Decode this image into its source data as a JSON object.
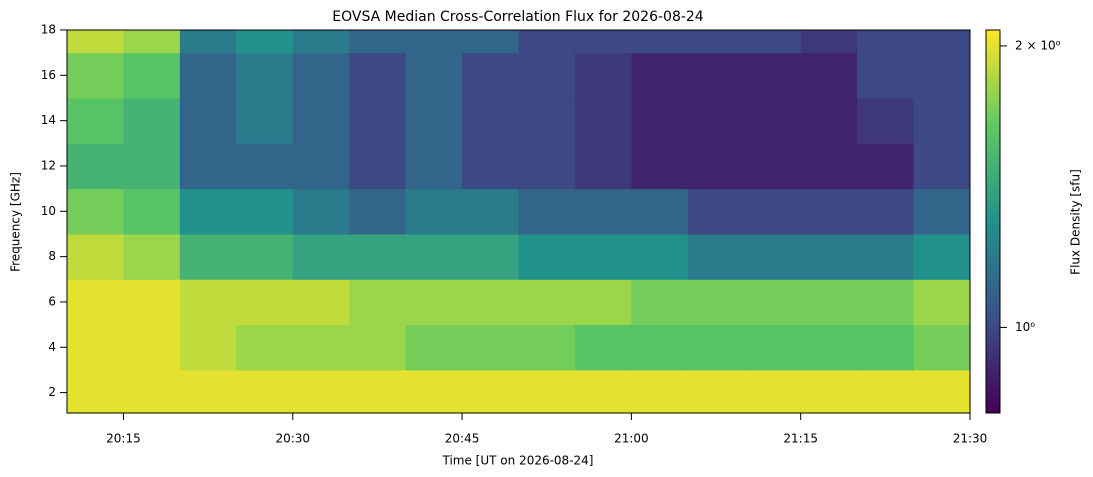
{
  "chart_data": {
    "type": "heatmap",
    "title": "EOVSA Median Cross-Correlation Flux for 2026-08-24",
    "xlabel": "Time [UT on 2026-08-24]",
    "ylabel": "Frequency [GHz]",
    "colorbar_label": "Flux Density [sfu]",
    "xlim": [
      "20:10",
      "21:30"
    ],
    "xticks": [
      "20:15",
      "20:30",
      "20:45",
      "21:00",
      "21:15",
      "21:30"
    ],
    "ylim": [
      1.1,
      18
    ],
    "yticks": [
      2,
      4,
      6,
      8,
      10,
      12,
      14,
      16,
      18
    ],
    "clim": [
      0.81,
      2.08
    ],
    "cticks": [
      {
        "value": 1,
        "label": "10⁰"
      },
      {
        "value": 2,
        "label": "2 × 10⁰"
      }
    ],
    "color_scale": "log",
    "colormap": [
      "#440154",
      "#3b528b",
      "#21918c",
      "#5ec962",
      "#fde725"
    ],
    "xbins": [
      "20:10",
      "20:15",
      "20:20",
      "20:25",
      "20:30",
      "20:35",
      "20:40",
      "20:45",
      "20:50",
      "20:55",
      "21:00",
      "21:05",
      "21:10",
      "21:15",
      "21:20",
      "21:25",
      "21:30"
    ],
    "ybins": [
      1.1,
      3,
      5,
      7,
      9,
      11,
      13,
      15,
      17,
      18
    ],
    "z": [
      [
        2.0,
        2.0,
        2.0,
        2.0,
        2.0,
        2.0,
        2.0,
        2.0,
        2.0,
        2.0,
        2.0,
        2.0,
        2.0,
        2.0,
        2.0,
        2.0
      ],
      [
        2.0,
        2.0,
        1.9,
        1.8,
        1.8,
        1.8,
        1.7,
        1.7,
        1.7,
        1.6,
        1.6,
        1.6,
        1.6,
        1.6,
        1.6,
        1.7
      ],
      [
        2.0,
        2.0,
        1.9,
        1.9,
        1.9,
        1.8,
        1.8,
        1.8,
        1.8,
        1.8,
        1.7,
        1.7,
        1.7,
        1.7,
        1.7,
        1.8
      ],
      [
        1.9,
        1.8,
        1.5,
        1.5,
        1.4,
        1.4,
        1.4,
        1.4,
        1.3,
        1.3,
        1.3,
        1.2,
        1.2,
        1.2,
        1.2,
        1.3
      ],
      [
        1.7,
        1.6,
        1.3,
        1.3,
        1.2,
        1.1,
        1.2,
        1.2,
        1.1,
        1.1,
        1.1,
        1.0,
        1.0,
        1.0,
        1.0,
        1.1
      ],
      [
        1.5,
        1.5,
        1.1,
        1.1,
        1.1,
        1.0,
        1.1,
        1.0,
        1.0,
        0.95,
        0.9,
        0.9,
        0.9,
        0.9,
        0.9,
        1.0
      ],
      [
        1.6,
        1.5,
        1.1,
        1.2,
        1.1,
        1.0,
        1.1,
        1.0,
        1.0,
        0.95,
        0.9,
        0.9,
        0.9,
        0.9,
        0.95,
        1.0
      ],
      [
        1.7,
        1.6,
        1.1,
        1.2,
        1.1,
        1.0,
        1.1,
        1.0,
        1.0,
        0.95,
        0.9,
        0.9,
        0.9,
        0.9,
        1.0,
        1.0
      ],
      [
        1.9,
        1.8,
        1.2,
        1.3,
        1.2,
        1.1,
        1.1,
        1.1,
        1.0,
        1.0,
        1.0,
        1.0,
        1.0,
        0.95,
        1.0,
        1.0
      ]
    ]
  }
}
